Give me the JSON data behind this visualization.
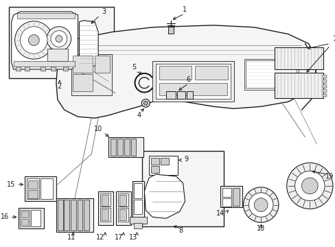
{
  "bg_color": "#ffffff",
  "line_color": "#1a1a1a",
  "gray_fill": "#f0f0f0",
  "light_fill": "#f8f8f8",
  "mid_gray": "#cccccc",
  "dark_gray": "#888888"
}
